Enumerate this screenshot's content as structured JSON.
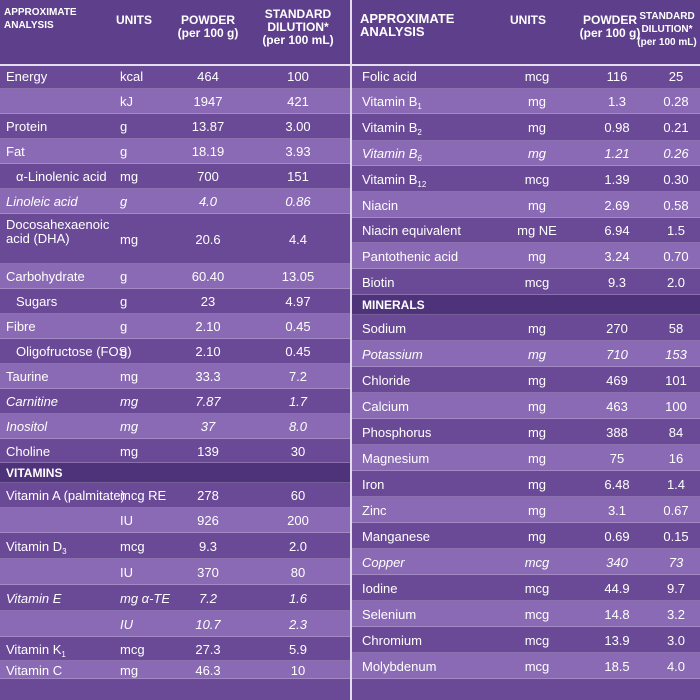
{
  "left": {
    "header": {
      "analysis": "APPROXIMATE\nANALYSIS",
      "units": "UNITS",
      "powder": "POWDER\n(per 100 g)",
      "dilution": "STANDARD\nDILUTION*\n(per 100 mL)"
    },
    "rows": [
      {
        "name": "Energy",
        "units": "kcal",
        "powder": "464",
        "dilution": "100"
      },
      {
        "name": "",
        "units": "kJ",
        "powder": "1947",
        "dilution": "421"
      },
      {
        "name": "Protein",
        "units": "g",
        "powder": "13.87",
        "dilution": "3.00"
      },
      {
        "name": "Fat",
        "units": "g",
        "powder": "18.19",
        "dilution": "3.93"
      },
      {
        "name": "α-Linolenic acid",
        "units": "mg",
        "powder": "700",
        "dilution": "151"
      },
      {
        "name": "Linoleic acid",
        "units": "g",
        "powder": "4.0",
        "dilution": "0.86"
      },
      {
        "name": "Docosahexaenoic acid (DHA)",
        "units": "mg",
        "powder": "20.6",
        "dilution": "4.4"
      },
      {
        "name": "Carbohydrate",
        "units": "g",
        "powder": "60.40",
        "dilution": "13.05"
      },
      {
        "name": "Sugars",
        "units": "g",
        "powder": "23",
        "dilution": "4.97"
      },
      {
        "name": "Fibre",
        "units": "g",
        "powder": "2.10",
        "dilution": "0.45"
      },
      {
        "name": "Oligofructose (FOS)",
        "units": "g",
        "powder": "2.10",
        "dilution": "0.45"
      },
      {
        "name": "Taurine",
        "units": "mg",
        "powder": "33.3",
        "dilution": "7.2"
      },
      {
        "name": "Carnitine",
        "units": "mg",
        "powder": "7.87",
        "dilution": "1.7"
      },
      {
        "name": "Inositol",
        "units": "mg",
        "powder": "37",
        "dilution": "8.0"
      },
      {
        "name": "Choline",
        "units": "mg",
        "powder": "139",
        "dilution": "30"
      },
      {
        "name": "VITAMINS"
      },
      {
        "name": "Vitamin A (palmitate)",
        "units": "mcg RE",
        "powder": "278",
        "dilution": "60"
      },
      {
        "name": "",
        "units": "IU",
        "powder": "926",
        "dilution": "200"
      },
      {
        "name": "Vitamin D",
        "sub": "3",
        "units": "mcg",
        "powder": "9.3",
        "dilution": "2.0"
      },
      {
        "name": "",
        "units": "IU",
        "powder": "370",
        "dilution": "80"
      },
      {
        "name": "Vitamin E",
        "units": "mg α-TE",
        "powder": "7.2",
        "dilution": "1.6"
      },
      {
        "name": "",
        "units": "IU",
        "powder": "10.7",
        "dilution": "2.3"
      },
      {
        "name": "Vitamin K",
        "sub": "1",
        "units": "mcg",
        "powder": "27.3",
        "dilution": "5.9"
      },
      {
        "name": "Vitamin C",
        "units": "mg",
        "powder": "46.3",
        "dilution": "10"
      }
    ]
  },
  "right": {
    "header": {
      "analysis": "APPROXIMATE\nANALYSIS",
      "units": "UNITS",
      "powder": "POWDER\n(per 100 g)",
      "dilution": "STANDARD\nDILUTION*\n(per 100 mL)"
    },
    "rows": [
      {
        "name": "Folic acid",
        "units": "mcg",
        "powder": "116",
        "dilution": "25"
      },
      {
        "name": "Vitamin B",
        "sub": "1",
        "units": "mg",
        "powder": "1.3",
        "dilution": "0.28"
      },
      {
        "name": "Vitamin B",
        "sub": "2",
        "units": "mg",
        "powder": "0.98",
        "dilution": "0.21"
      },
      {
        "name": "Vitamin B",
        "sub": "6",
        "units": "mg",
        "powder": "1.21",
        "dilution": "0.26"
      },
      {
        "name": "Vitamin B",
        "sub": "12",
        "units": "mcg",
        "powder": "1.39",
        "dilution": "0.30"
      },
      {
        "name": "Niacin",
        "units": "mg",
        "powder": "2.69",
        "dilution": "0.58"
      },
      {
        "name": "Niacin equivalent",
        "units": "mg NE",
        "powder": "6.94",
        "dilution": "1.5"
      },
      {
        "name": "Pantothenic acid",
        "units": "mg",
        "powder": "3.24",
        "dilution": "0.70"
      },
      {
        "name": "Biotin",
        "units": "mcg",
        "powder": "9.3",
        "dilution": "2.0"
      },
      {
        "name": "MINERALS"
      },
      {
        "name": "Sodium",
        "units": "mg",
        "powder": "270",
        "dilution": "58"
      },
      {
        "name": "Potassium",
        "units": "mg",
        "powder": "710",
        "dilution": "153"
      },
      {
        "name": "Chloride",
        "units": "mg",
        "powder": "469",
        "dilution": "101"
      },
      {
        "name": "Calcium",
        "units": "mg",
        "powder": "463",
        "dilution": "100"
      },
      {
        "name": "Phosphorus",
        "units": "mg",
        "powder": "388",
        "dilution": "84"
      },
      {
        "name": "Magnesium",
        "units": "mg",
        "powder": "75",
        "dilution": "16"
      },
      {
        "name": "Iron",
        "units": "mg",
        "powder": "6.48",
        "dilution": "1.4"
      },
      {
        "name": "Zinc",
        "units": "mg",
        "powder": "3.1",
        "dilution": "0.67"
      },
      {
        "name": "Manganese",
        "units": "mg",
        "powder": "0.69",
        "dilution": "0.15"
      },
      {
        "name": "Copper",
        "units": "mcg",
        "powder": "340",
        "dilution": "73"
      },
      {
        "name": "Iodine",
        "units": "mcg",
        "powder": "44.9",
        "dilution": "9.7"
      },
      {
        "name": "Selenium",
        "units": "mcg",
        "powder": "14.8",
        "dilution": "3.2"
      },
      {
        "name": "Chromium",
        "units": "mcg",
        "powder": "13.9",
        "dilution": "3.0"
      },
      {
        "name": "Molybdenum",
        "units": "mcg",
        "powder": "18.5",
        "dilution": "4.0"
      }
    ]
  }
}
